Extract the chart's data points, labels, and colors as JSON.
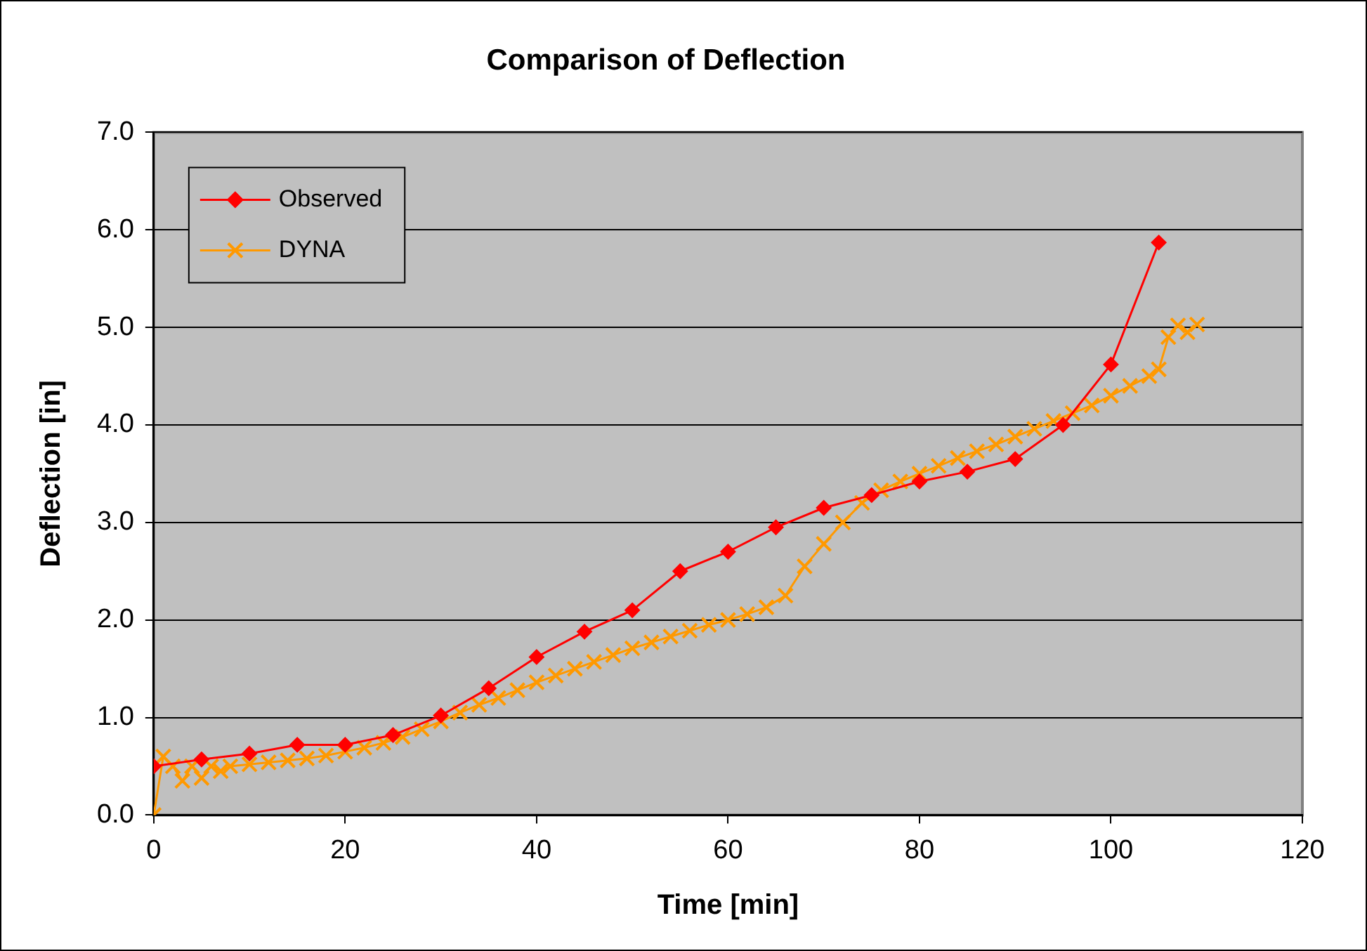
{
  "chart_data": {
    "type": "line",
    "title": "Comparison of Deflection",
    "xlabel": "Time [min]",
    "ylabel": "Deflection [in]",
    "xlim": [
      0,
      120
    ],
    "xticks": [
      0,
      20,
      40,
      60,
      80,
      100,
      120
    ],
    "ylim": [
      0,
      7
    ],
    "yticks": [
      {
        "value": 0,
        "label": "0.0"
      },
      {
        "value": 1,
        "label": "1.0"
      },
      {
        "value": 2,
        "label": "2.0"
      },
      {
        "value": 3,
        "label": "3.0"
      },
      {
        "value": 4,
        "label": "4.0"
      },
      {
        "value": 5,
        "label": "5.0"
      },
      {
        "value": 6,
        "label": "6.0"
      },
      {
        "value": 7,
        "label": "7.0"
      }
    ],
    "grid": "y",
    "legend": "top left",
    "line_style": "solid",
    "series": [
      {
        "name": "Observed",
        "color": "#ff0000",
        "marker": "diamond",
        "x": [
          0,
          5,
          10,
          15,
          20,
          25,
          30,
          35,
          40,
          45,
          50,
          55,
          60,
          65,
          70,
          75,
          80,
          85,
          90,
          95,
          100,
          105
        ],
        "values": [
          0.5,
          0.57,
          0.63,
          0.72,
          0.72,
          0.82,
          1.02,
          1.3,
          1.62,
          1.88,
          2.1,
          2.5,
          2.7,
          2.95,
          3.15,
          3.28,
          3.42,
          3.52,
          3.65,
          4.0,
          4.62,
          5.87
        ]
      },
      {
        "name": "DYNA",
        "color": "#ff9900",
        "marker": "cross",
        "x": [
          0,
          1,
          2,
          3,
          4,
          5,
          6,
          7,
          8,
          10,
          12,
          14,
          16,
          18,
          20,
          22,
          24,
          26,
          28,
          30,
          32,
          34,
          36,
          38,
          40,
          42,
          44,
          46,
          48,
          50,
          52,
          54,
          56,
          58,
          60,
          62,
          64,
          66,
          68,
          70,
          72,
          74,
          76,
          78,
          80,
          82,
          84,
          86,
          88,
          90,
          92,
          94,
          96,
          98,
          100,
          102,
          104,
          105,
          106,
          107,
          108,
          109
        ],
        "values": [
          0,
          0.6,
          0.5,
          0.35,
          0.5,
          0.38,
          0.5,
          0.45,
          0.5,
          0.52,
          0.54,
          0.56,
          0.58,
          0.61,
          0.65,
          0.69,
          0.74,
          0.8,
          0.88,
          0.96,
          1.05,
          1.13,
          1.2,
          1.28,
          1.36,
          1.43,
          1.5,
          1.57,
          1.64,
          1.71,
          1.77,
          1.83,
          1.89,
          1.95,
          2.0,
          2.06,
          2.13,
          2.25,
          2.55,
          2.78,
          3.0,
          3.2,
          3.33,
          3.42,
          3.5,
          3.58,
          3.66,
          3.73,
          3.8,
          3.88,
          3.96,
          4.04,
          4.12,
          4.2,
          4.3,
          4.4,
          4.5,
          4.57,
          4.9,
          5.02,
          4.95,
          5.03
        ]
      }
    ]
  }
}
